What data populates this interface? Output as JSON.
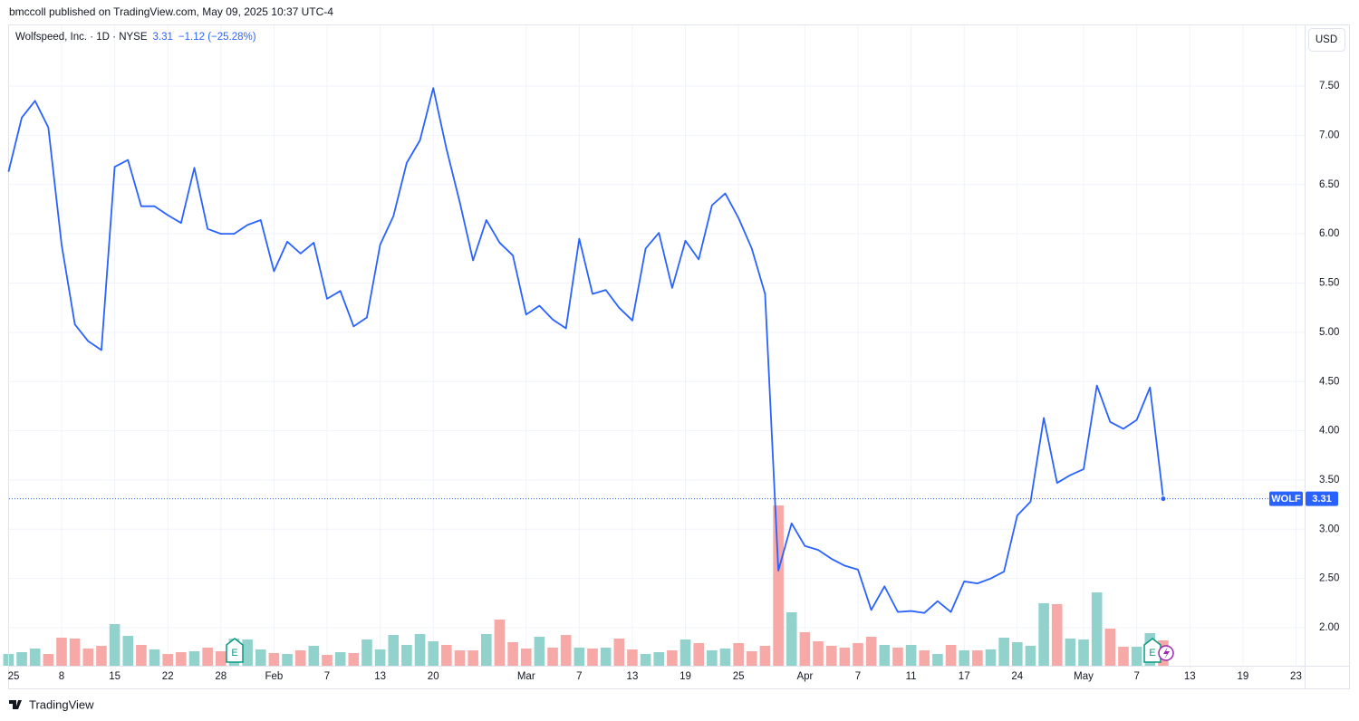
{
  "chart_data": {
    "type": "line",
    "header": "bmccoll published on TradingView.com, May 09, 2025 10:37 UTC-4",
    "title": "Wolfspeed, Inc. · 1D · NYSE",
    "change": "−1.12 (−25.28%)",
    "currency": "USD",
    "footer": "TradingView",
    "earnings_label": "E",
    "categories": [
      "25",
      null,
      null,
      null,
      "8",
      null,
      null,
      null,
      "15",
      null,
      null,
      null,
      "22",
      null,
      null,
      null,
      "28",
      null,
      null,
      null,
      "Feb",
      null,
      null,
      null,
      "7",
      null,
      null,
      null,
      "13",
      null,
      null,
      null,
      "20",
      null,
      null,
      null,
      null,
      null,
      null,
      "Mar",
      null,
      null,
      null,
      "7",
      null,
      null,
      null,
      "13",
      null,
      null,
      null,
      "19",
      null,
      null,
      null,
      "25",
      null,
      null,
      null,
      null,
      "Apr",
      null,
      null,
      null,
      "7",
      null,
      null,
      null,
      "11",
      null,
      null,
      null,
      "17",
      null,
      null,
      null,
      "24",
      null,
      null,
      null,
      null,
      "May",
      null,
      null,
      null,
      "7",
      null,
      null,
      null,
      "13",
      null,
      null,
      null,
      "19",
      null,
      null,
      null,
      "23"
    ],
    "series": [
      {
        "name": "WOLF",
        "color": "#2962ff",
        "values": [
          6.63,
          7.18,
          7.35,
          7.08,
          5.89,
          5.08,
          4.91,
          4.82,
          6.68,
          6.75,
          6.28,
          6.28,
          6.19,
          6.11,
          6.67,
          6.05,
          6.0,
          6.0,
          6.09,
          6.14,
          5.62,
          5.92,
          5.8,
          5.91,
          5.34,
          5.42,
          5.06,
          5.15,
          5.89,
          6.18,
          6.72,
          6.95,
          7.48,
          6.86,
          6.32,
          5.73,
          6.14,
          5.91,
          5.78,
          5.18,
          5.27,
          5.13,
          5.04,
          5.95,
          5.39,
          5.43,
          5.25,
          5.12,
          5.85,
          6.01,
          5.45,
          5.93,
          5.74,
          6.29,
          6.41,
          6.16,
          5.85,
          5.39,
          2.58,
          3.06,
          2.83,
          2.79,
          2.7,
          2.63,
          2.59,
          2.18,
          2.42,
          2.16,
          2.17,
          2.15,
          2.27,
          2.16,
          2.47,
          2.45,
          2.5,
          2.57,
          3.14,
          3.28,
          4.13,
          3.47,
          3.55,
          3.61,
          4.46,
          4.09,
          4.02,
          4.11,
          4.44,
          3.31,
          null,
          null,
          null,
          null,
          null,
          null,
          null,
          null,
          null,
          null
        ]
      }
    ],
    "volume": {
      "up_color": "#92d2cc",
      "down_color": "#f7a9a7",
      "vlim": [
        0,
        354
      ],
      "values": [
        6.5,
        7.5,
        9.5,
        6.5,
        15.5,
        15,
        9.5,
        11,
        23,
        16.5,
        11.5,
        9,
        6.5,
        7.5,
        8,
        10,
        8,
        15,
        14.5,
        9,
        7,
        6.5,
        8.5,
        11,
        6,
        7.5,
        7,
        14.5,
        9,
        17,
        11.5,
        17.5,
        13.5,
        11.5,
        8.5,
        8.5,
        17.5,
        25.5,
        13,
        9.5,
        16,
        10,
        17,
        10,
        9.5,
        10,
        15,
        9,
        6.5,
        7.5,
        8.5,
        14.5,
        12.5,
        8.5,
        9.5,
        12.5,
        8,
        11,
        88.5,
        29.5,
        18.5,
        13.5,
        11,
        10,
        12.5,
        16,
        11.5,
        10,
        11.5,
        8.5,
        6.5,
        11.5,
        8.5,
        8.5,
        9,
        15.5,
        13,
        11,
        34.5,
        34,
        15,
        14.5,
        40.5,
        20.5,
        10.5,
        10.5,
        18,
        14,
        null,
        null,
        null,
        null,
        null,
        null,
        null,
        null,
        null,
        null
      ]
    },
    "ylim": [
      1.614,
      8.126
    ],
    "yticks": [
      {
        "value": 2,
        "label": "2.00"
      },
      {
        "value": 2.5,
        "label": "2.50"
      },
      {
        "value": 3,
        "label": "3.00"
      },
      {
        "value": 3.5,
        "label": "3.50"
      },
      {
        "value": 4,
        "label": "4.00"
      },
      {
        "value": 4.5,
        "label": "4.50"
      },
      {
        "value": 5,
        "label": "5.00"
      },
      {
        "value": 5.5,
        "label": "5.50"
      },
      {
        "value": 6,
        "label": "6.00"
      },
      {
        "value": 6.5,
        "label": "6.50"
      },
      {
        "value": 7,
        "label": "7.00"
      },
      {
        "value": 7.5,
        "label": "7.50"
      }
    ],
    "grid": true
  }
}
